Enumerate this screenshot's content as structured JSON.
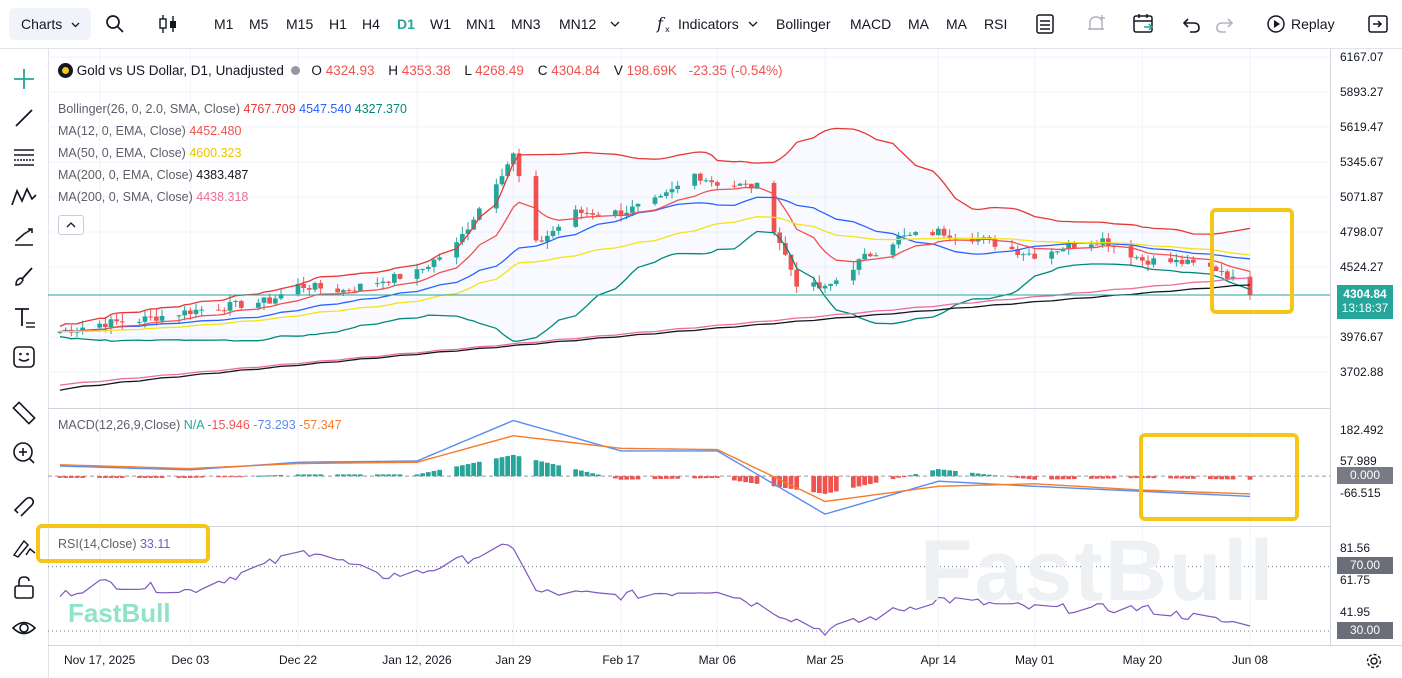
{
  "toolbar": {
    "charts_label": "Charts",
    "timeframes": [
      "M1",
      "M5",
      "M15",
      "H1",
      "H4",
      "D1",
      "W1",
      "MN1",
      "MN3",
      "MN12"
    ],
    "active_timeframe": "D1",
    "indicators_label": "Indicators",
    "quick_indicators": [
      "Bollinger",
      "MACD",
      "MA",
      "MA",
      "RSI"
    ],
    "replay_label": "Replay"
  },
  "header": {
    "symbol": "Gold vs US Dollar, D1, Unadjusted",
    "o_label": "O",
    "o_value": "4324.93",
    "h_label": "H",
    "h_value": "4353.38",
    "l_label": "L",
    "l_value": "4268.49",
    "c_label": "C",
    "c_value": "4304.84",
    "v_label": "V",
    "v_value": "198.69K",
    "change": "-23.35 (-0.54%)"
  },
  "indicators": {
    "bollinger": {
      "label": "Bollinger(26, 0, 2.0, SMA, Close)",
      "upper": "4767.709",
      "middle": "4547.540",
      "lower": "4327.370"
    },
    "ma1": {
      "label": "MA(12, 0, EMA, Close)",
      "value": "4452.480"
    },
    "ma2": {
      "label": "MA(50, 0, EMA, Close)",
      "value": "4600.323"
    },
    "ma3": {
      "label": "MA(200, 0, EMA, Close)",
      "value": "4383.487"
    },
    "ma4": {
      "label": "MA(200, 0, SMA, Close)",
      "value": "4438.318"
    },
    "macd": {
      "label": "MACD(12,26,9,Close)",
      "histogram": "N/A",
      "macd": "-15.946",
      "signal": "-73.293",
      "extra": "-57.347"
    },
    "rsi": {
      "label": "RSI(14,Close)",
      "value": "33.11"
    }
  },
  "price_tag": {
    "price": "4304.84",
    "countdown": "13:18:37"
  },
  "rsi_tags": {
    "upper": "70.00",
    "lower": "30.00"
  },
  "macd_zero_tag": "0.000",
  "watermark": "FastBull",
  "colors": {
    "up": "#26a69a",
    "down": "#ef5350",
    "boll_upper": "#e53935",
    "boll_middle": "#2962ff",
    "boll_lower": "#00897b",
    "ema12": "#ef5350",
    "ema50": "#f2e31a",
    "ema200": "#131722",
    "sma200": "#ec6d9c",
    "macd": "#5b8def",
    "signal": "#f57c2b",
    "rsi": "#7e57c2",
    "highlight": "#f5c518"
  },
  "chart_data": [
    {
      "type": "candlestick",
      "title": "Gold vs US Dollar, D1, Unadjusted",
      "x_ticks": [
        "Nov 17, 2025",
        "Dec 03",
        "Dec 22",
        "Jan 12, 2026",
        "Jan 29",
        "Feb 17",
        "Mar 06",
        "Mar 25",
        "Apr 14",
        "May 01",
        "May 20",
        "Jun 08"
      ],
      "y_ticks": [
        "6167.07",
        "5893.27",
        "5619.47",
        "5345.67",
        "5071.87",
        "4798.07",
        "4524.27",
        "3976.67",
        "3702.88"
      ],
      "ylim": [
        3560,
        6200
      ],
      "close_path": [
        [
          "Nov 10, 2025",
          4020
        ],
        [
          "Nov 17, 2025",
          4080
        ],
        [
          "Nov 24, 2025",
          4110
        ],
        [
          "Dec 03",
          4180
        ],
        [
          "Dec 10",
          4220
        ],
        [
          "Dec 17",
          4260
        ],
        [
          "Dec 22",
          4380
        ],
        [
          "Dec 30",
          4340
        ],
        [
          "Jan 06, 2026",
          4420
        ],
        [
          "Jan 12, 2026",
          4480
        ],
        [
          "Jan 19",
          4700
        ],
        [
          "Jan 26",
          5200
        ],
        [
          "Jan 29",
          5400
        ],
        [
          "Feb 02",
          4700
        ],
        [
          "Feb 09",
          4950
        ],
        [
          "Feb 17",
          4950
        ],
        [
          "Feb 24",
          5050
        ],
        [
          "Mar 02",
          5250
        ],
        [
          "Mar 06",
          5180
        ],
        [
          "Mar 13",
          5150
        ],
        [
          "Mar 20",
          4400
        ],
        [
          "Mar 25",
          4350
        ],
        [
          "Apr 01",
          4600
        ],
        [
          "Apr 07",
          4750
        ],
        [
          "Apr 14",
          4800
        ],
        [
          "Apr 21",
          4750
        ],
        [
          "Apr 28",
          4650
        ],
        [
          "May 01",
          4620
        ],
        [
          "May 08",
          4700
        ],
        [
          "May 13",
          4740
        ],
        [
          "May 20",
          4580
        ],
        [
          "May 27",
          4560
        ],
        [
          "Jun 03",
          4500
        ],
        [
          "Jun 08",
          4304.84
        ]
      ],
      "series": [
        {
          "name": "Bollinger upper",
          "last": 4767.709
        },
        {
          "name": "Bollinger middle",
          "last": 4547.54
        },
        {
          "name": "Bollinger lower",
          "last": 4327.37
        },
        {
          "name": "EMA 12",
          "last": 4452.48
        },
        {
          "name": "EMA 50",
          "last": 4600.323
        },
        {
          "name": "EMA 200",
          "last": 4383.487
        },
        {
          "name": "SMA 200",
          "last": 4438.318
        }
      ],
      "last_close": 4304.84
    },
    {
      "type": "histogram+line",
      "title": "MACD(12,26,9,Close)",
      "y_ticks": [
        "182.492",
        "57.989",
        "0.000",
        "-66.515"
      ],
      "ylim": [
        -200,
        230
      ],
      "macd_path": [
        [
          "Nov 10, 2025",
          40
        ],
        [
          "Dec 03",
          25
        ],
        [
          "Dec 22",
          55
        ],
        [
          "Jan 12, 2026",
          60
        ],
        [
          "Jan 29",
          220
        ],
        [
          "Feb 17",
          100
        ],
        [
          "Mar 06",
          100
        ],
        [
          "Mar 25",
          -150
        ],
        [
          "Apr 14",
          -20
        ],
        [
          "May 01",
          -40
        ],
        [
          "May 20",
          -60
        ],
        [
          "Jun 08",
          -80
        ]
      ],
      "signal_path": [
        [
          "Nov 10, 2025",
          45
        ],
        [
          "Dec 03",
          30
        ],
        [
          "Dec 22",
          50
        ],
        [
          "Jan 12, 2026",
          55
        ],
        [
          "Jan 29",
          160
        ],
        [
          "Feb 17",
          110
        ],
        [
          "Mar 06",
          105
        ],
        [
          "Mar 25",
          -100
        ],
        [
          "Apr 14",
          -40
        ],
        [
          "May 01",
          -30
        ],
        [
          "May 20",
          -55
        ],
        [
          "Jun 08",
          -70
        ]
      ]
    },
    {
      "type": "line",
      "title": "RSI(14,Close)",
      "y_ticks": [
        "81.56",
        "70.00",
        "61.75",
        "41.95",
        "30.00"
      ],
      "ylim": [
        25,
        88
      ],
      "levels": [
        70,
        30
      ],
      "rsi_path": [
        [
          "Nov 10, 2025",
          52
        ],
        [
          "Nov 17, 2025",
          60
        ],
        [
          "Dec 03",
          55
        ],
        [
          "Dec 22",
          78
        ],
        [
          "Dec 25",
          80
        ],
        [
          "Jan 05, 2026",
          64
        ],
        [
          "Jan 12, 2026",
          66
        ],
        [
          "Jan 26",
          80
        ],
        [
          "Jan 29",
          83
        ],
        [
          "Feb 02",
          54
        ],
        [
          "Feb 17",
          52
        ],
        [
          "Mar 06",
          56
        ],
        [
          "Mar 25",
          30
        ],
        [
          "Apr 14",
          50
        ],
        [
          "May 01",
          44
        ],
        [
          "May 20",
          44
        ],
        [
          "Jun 08",
          33.11
        ]
      ]
    }
  ]
}
